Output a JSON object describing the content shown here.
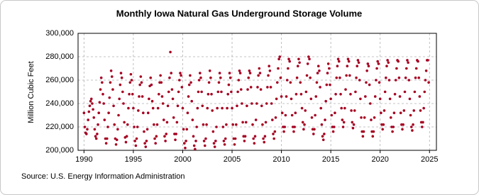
{
  "chart_data": {
    "type": "scatter",
    "title": "Monthly Iowa Natural Gas Underground Storage Volume",
    "y_label": "Million Cubic Feet",
    "source": "Source: U.S. Energy Information Administration",
    "color": "#a50021",
    "grid": true,
    "xlim": [
      1989.4,
      2025.7
    ],
    "xticks": [
      1990,
      1995,
      2000,
      2005,
      2010,
      2015,
      2020,
      2025
    ],
    "ylim": [
      200000,
      300000
    ],
    "yticks": [
      {
        "value": 200000,
        "label": "200,000"
      },
      {
        "value": 220000,
        "label": "220,000"
      },
      {
        "value": 240000,
        "label": "240,000"
      },
      {
        "value": 260000,
        "label": "260,000"
      },
      {
        "value": 280000,
        "label": "280,000"
      },
      {
        "value": 300000,
        "label": "300,000"
      }
    ],
    "x": [
      1990,
      1990.083,
      1990.167,
      1990.25,
      1990.333,
      1990.417,
      1990.5,
      1990.583,
      1990.667,
      1990.75,
      1990.833,
      1990.917,
      1991,
      1991.083,
      1991.167,
      1991.25,
      1991.333,
      1991.417,
      1991.5,
      1991.583,
      1991.667,
      1991.75,
      1991.833,
      1991.917,
      1992,
      1992.083,
      1992.167,
      1992.25,
      1992.333,
      1992.417,
      1992.5,
      1992.583,
      1992.667,
      1992.75,
      1992.833,
      1992.917,
      1993,
      1993.083,
      1993.167,
      1993.25,
      1993.333,
      1993.417,
      1993.5,
      1993.583,
      1993.667,
      1993.75,
      1993.833,
      1993.917,
      1994,
      1994.083,
      1994.167,
      1994.25,
      1994.333,
      1994.417,
      1994.5,
      1994.583,
      1994.667,
      1994.75,
      1994.833,
      1994.917,
      1995,
      1995.083,
      1995.167,
      1995.25,
      1995.333,
      1995.417,
      1995.5,
      1995.583,
      1995.667,
      1995.75,
      1995.833,
      1995.917,
      1996,
      1996.083,
      1996.167,
      1996.25,
      1996.333,
      1996.417,
      1996.5,
      1996.583,
      1996.667,
      1996.75,
      1996.833,
      1996.917,
      1997,
      1997.083,
      1997.167,
      1997.25,
      1997.333,
      1997.417,
      1997.5,
      1997.583,
      1997.667,
      1997.75,
      1997.833,
      1997.917,
      1998,
      1998.083,
      1998.167,
      1998.25,
      1998.333,
      1998.417,
      1998.5,
      1998.583,
      1998.667,
      1998.75,
      1998.833,
      1998.917,
      1999,
      1999.083,
      1999.167,
      1999.25,
      1999.333,
      1999.417,
      1999.5,
      1999.583,
      1999.667,
      1999.75,
      1999.833,
      1999.917,
      2000,
      2000.083,
      2000.167,
      2000.25,
      2000.333,
      2000.417,
      2000.5,
      2000.583,
      2000.667,
      2000.75,
      2000.833,
      2000.917,
      2001,
      2001.083,
      2001.167,
      2001.25,
      2001.333,
      2001.417,
      2001.5,
      2001.583,
      2001.667,
      2001.75,
      2001.833,
      2001.917,
      2002,
      2002.083,
      2002.167,
      2002.25,
      2002.333,
      2002.417,
      2002.5,
      2002.583,
      2002.667,
      2002.75,
      2002.833,
      2002.917,
      2003,
      2003.083,
      2003.167,
      2003.25,
      2003.333,
      2003.417,
      2003.5,
      2003.583,
      2003.667,
      2003.75,
      2003.833,
      2003.917,
      2004,
      2004.083,
      2004.167,
      2004.25,
      2004.333,
      2004.417,
      2004.5,
      2004.583,
      2004.667,
      2004.75,
      2004.833,
      2004.917,
      2005,
      2005.083,
      2005.167,
      2005.25,
      2005.333,
      2005.417,
      2005.5,
      2005.583,
      2005.667,
      2005.75,
      2005.833,
      2005.917,
      2006,
      2006.083,
      2006.167,
      2006.25,
      2006.333,
      2006.417,
      2006.5,
      2006.583,
      2006.667,
      2006.75,
      2006.833,
      2006.917,
      2007,
      2007.083,
      2007.167,
      2007.25,
      2007.333,
      2007.417,
      2007.5,
      2007.583,
      2007.667,
      2007.75,
      2007.833,
      2007.917,
      2008,
      2008.083,
      2008.167,
      2008.25,
      2008.333,
      2008.417,
      2008.5,
      2008.583,
      2008.667,
      2008.75,
      2008.833,
      2008.917,
      2009,
      2009.083,
      2009.167,
      2009.25,
      2009.333,
      2009.417,
      2009.5,
      2009.583,
      2009.667,
      2009.75,
      2009.833,
      2009.917,
      2010,
      2010.083,
      2010.167,
      2010.25,
      2010.333,
      2010.417,
      2010.5,
      2010.583,
      2010.667,
      2010.75,
      2010.833,
      2010.917,
      2011,
      2011.083,
      2011.167,
      2011.25,
      2011.333,
      2011.417,
      2011.5,
      2011.583,
      2011.667,
      2011.75,
      2011.833,
      2011.917,
      2012,
      2012.083,
      2012.167,
      2012.25,
      2012.333,
      2012.417,
      2012.5,
      2012.583,
      2012.667,
      2012.75,
      2012.833,
      2012.917,
      2013,
      2013.083,
      2013.167,
      2013.25,
      2013.333,
      2013.417,
      2013.5,
      2013.583,
      2013.667,
      2013.75,
      2013.833,
      2013.917,
      2014,
      2014.083,
      2014.167,
      2014.25,
      2014.333,
      2014.417,
      2014.5,
      2014.583,
      2014.667,
      2014.75,
      2014.833,
      2014.917,
      2015,
      2015.083,
      2015.167,
      2015.25,
      2015.333,
      2015.417,
      2015.5,
      2015.583,
      2015.667,
      2015.75,
      2015.833,
      2015.917,
      2016,
      2016.083,
      2016.167,
      2016.25,
      2016.333,
      2016.417,
      2016.5,
      2016.583,
      2016.667,
      2016.75,
      2016.833,
      2016.917,
      2017,
      2017.083,
      2017.167,
      2017.25,
      2017.333,
      2017.417,
      2017.5,
      2017.583,
      2017.667,
      2017.75,
      2017.833,
      2017.917,
      2018,
      2018.083,
      2018.167,
      2018.25,
      2018.333,
      2018.417,
      2018.5,
      2018.583,
      2018.667,
      2018.75,
      2018.833,
      2018.917,
      2019,
      2019.083,
      2019.167,
      2019.25,
      2019.333,
      2019.417,
      2019.5,
      2019.583,
      2019.667,
      2019.75,
      2019.833,
      2019.917,
      2020,
      2020.083,
      2020.167,
      2020.25,
      2020.333,
      2020.417,
      2020.5,
      2020.583,
      2020.667,
      2020.75,
      2020.833,
      2020.917,
      2021,
      2021.083,
      2021.167,
      2021.25,
      2021.333,
      2021.417,
      2021.5,
      2021.583,
      2021.667,
      2021.75,
      2021.833,
      2021.917,
      2022,
      2022.083,
      2022.167,
      2022.25,
      2022.333,
      2022.417,
      2022.5,
      2022.583,
      2022.667,
      2022.75,
      2022.833,
      2022.917,
      2023,
      2023.083,
      2023.167,
      2023.25,
      2023.333,
      2023.417,
      2023.5,
      2023.583,
      2023.667,
      2023.75,
      2023.833,
      2023.917,
      2024,
      2024.083,
      2024.167,
      2024.25,
      2024.333,
      2024.417,
      2024.5,
      2024.583,
      2024.667,
      2024.75,
      2024.833,
      2024.917
    ],
    "values": [
      232000,
      220000,
      215000,
      214000,
      218000,
      226000,
      233000,
      238000,
      242000,
      244000,
      240000,
      235000,
      228000,
      218000,
      212000,
      210000,
      214000,
      222000,
      232000,
      241000,
      252000,
      262000,
      258000,
      248000,
      240000,
      226000,
      210000,
      206000,
      210000,
      220000,
      232000,
      245000,
      258000,
      268000,
      263000,
      252000,
      238000,
      222000,
      210000,
      205000,
      209000,
      218000,
      230000,
      244000,
      256000,
      266000,
      262000,
      250000,
      240000,
      224000,
      211000,
      207000,
      212000,
      222000,
      236000,
      248000,
      258000,
      265000,
      260000,
      248000,
      236000,
      220000,
      208000,
      204000,
      210000,
      220000,
      234000,
      246000,
      256000,
      263000,
      258000,
      246000,
      232000,
      216000,
      206000,
      203000,
      208000,
      218000,
      232000,
      244000,
      255000,
      262000,
      256000,
      242000,
      236000,
      222000,
      210000,
      206000,
      212000,
      222000,
      236000,
      248000,
      258000,
      264000,
      258000,
      246000,
      240000,
      226000,
      212000,
      208000,
      214000,
      224000,
      238000,
      250000,
      262000,
      284000,
      266000,
      252000,
      244000,
      228000,
      214000,
      209000,
      214000,
      224000,
      238000,
      250000,
      260000,
      266000,
      264000,
      254000,
      236000,
      218000,
      206000,
      202000,
      208000,
      218000,
      232000,
      246000,
      256000,
      264000,
      258000,
      242000,
      226000,
      212000,
      204000,
      201000,
      208000,
      220000,
      236000,
      250000,
      260000,
      266000,
      262000,
      250000,
      238000,
      222000,
      208000,
      204000,
      210000,
      222000,
      236000,
      248000,
      258000,
      268000,
      262000,
      248000,
      234000,
      216000,
      206000,
      203000,
      208000,
      220000,
      236000,
      250000,
      258000,
      266000,
      262000,
      250000,
      236000,
      220000,
      208000,
      205000,
      210000,
      222000,
      236000,
      248000,
      256000,
      266000,
      262000,
      250000,
      236000,
      222000,
      210000,
      205000,
      210000,
      222000,
      238000,
      250000,
      260000,
      268000,
      266000,
      252000,
      240000,
      224000,
      212000,
      208000,
      212000,
      224000,
      238000,
      252000,
      262000,
      268000,
      266000,
      254000,
      240000,
      222000,
      210000,
      206000,
      212000,
      226000,
      240000,
      254000,
      264000,
      270000,
      266000,
      252000,
      238000,
      222000,
      210000,
      207000,
      212000,
      224000,
      240000,
      254000,
      264000,
      272000,
      268000,
      254000,
      240000,
      226000,
      214000,
      210000,
      216000,
      228000,
      244000,
      258000,
      270000,
      278000,
      280000,
      262000,
      246000,
      232000,
      220000,
      216000,
      220000,
      230000,
      246000,
      260000,
      270000,
      278000,
      276000,
      258000,
      244000,
      230000,
      220000,
      216000,
      220000,
      232000,
      248000,
      262000,
      272000,
      278000,
      275000,
      258000,
      248000,
      236000,
      224000,
      218000,
      222000,
      234000,
      250000,
      264000,
      274000,
      280000,
      278000,
      262000,
      244000,
      228000,
      218000,
      214000,
      218000,
      230000,
      246000,
      258000,
      266000,
      272000,
      268000,
      254000,
      236000,
      222000,
      212000,
      209000,
      214000,
      226000,
      242000,
      256000,
      266000,
      274000,
      270000,
      256000,
      244000,
      230000,
      220000,
      216000,
      220000,
      232000,
      248000,
      262000,
      272000,
      278000,
      276000,
      262000,
      248000,
      236000,
      226000,
      220000,
      224000,
      236000,
      252000,
      264000,
      272000,
      278000,
      276000,
      264000,
      248000,
      234000,
      224000,
      219000,
      222000,
      234000,
      250000,
      262000,
      272000,
      277000,
      275000,
      260000,
      244000,
      228000,
      216000,
      212000,
      216000,
      228000,
      246000,
      258000,
      268000,
      274000,
      272000,
      256000,
      240000,
      226000,
      216000,
      212000,
      216000,
      228000,
      246000,
      260000,
      270000,
      276000,
      274000,
      258000,
      244000,
      232000,
      222000,
      218000,
      222000,
      234000,
      250000,
      262000,
      272000,
      277000,
      275000,
      260000,
      244000,
      228000,
      220000,
      216000,
      220000,
      232000,
      248000,
      260000,
      270000,
      277000,
      276000,
      262000,
      246000,
      232000,
      222000,
      218000,
      222000,
      234000,
      250000,
      262000,
      270000,
      277000,
      275000,
      260000,
      244000,
      230000,
      220000,
      217000,
      222000,
      234000,
      250000,
      262000,
      270000,
      277000,
      276000,
      262000,
      246000,
      234000,
      224000,
      220000,
      224000,
      236000,
      250000,
      260000,
      268000,
      277000,
      277000,
      258000
    ]
  }
}
